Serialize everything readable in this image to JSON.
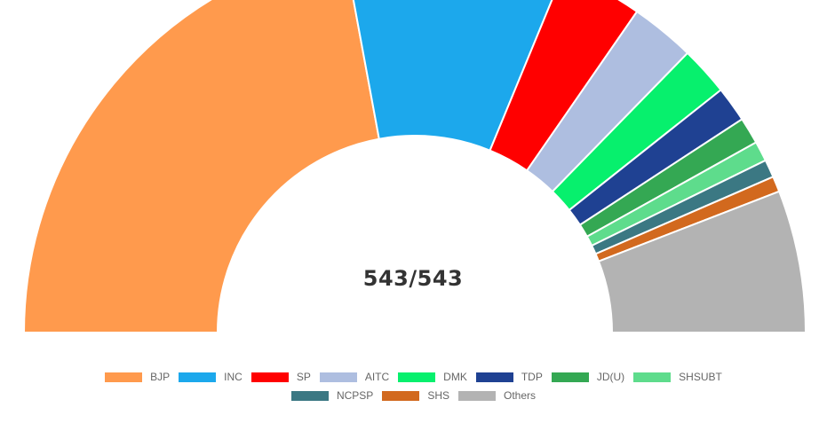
{
  "chart_data": {
    "type": "pie",
    "subtype": "half-doughnut",
    "center_label": "543/543",
    "legend_placement": "bottom",
    "slices": [
      {
        "label": "BJP",
        "value": 240,
        "color": "#FF9A4D"
      },
      {
        "label": "INC",
        "value": 99,
        "color": "#1CA8EC"
      },
      {
        "label": "SP",
        "value": 37,
        "color": "#FF0000"
      },
      {
        "label": "AITC",
        "value": 29,
        "color": "#AEBEE0"
      },
      {
        "label": "DMK",
        "value": 22,
        "color": "#07F06D"
      },
      {
        "label": "TDP",
        "value": 16,
        "color": "#1F4192"
      },
      {
        "label": "JD(U)",
        "value": 12,
        "color": "#34A853"
      },
      {
        "label": "SHSUBT",
        "value": 9,
        "color": "#5EDC8C"
      },
      {
        "label": "NCPSP",
        "value": 8,
        "color": "#3B7883"
      },
      {
        "label": "SHS",
        "value": 7,
        "color": "#D2691E"
      },
      {
        "label": "Others",
        "value": 64,
        "color": "#B3B3B3"
      }
    ]
  }
}
